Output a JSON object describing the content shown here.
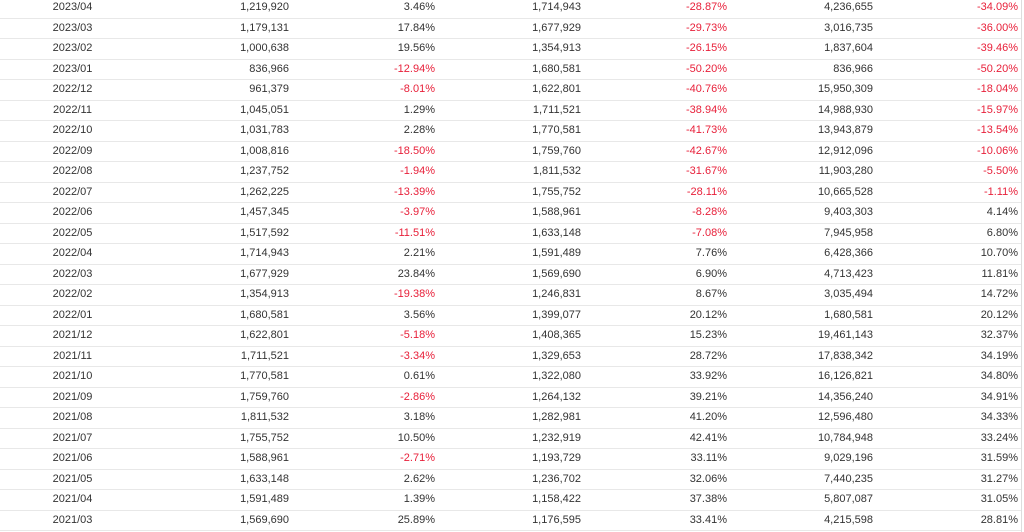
{
  "colors": {
    "negative": "#e8203a",
    "text": "#333333",
    "row_border": "#e8e8e8"
  },
  "rows": [
    [
      "2023/04",
      "1,219,920",
      "3.46%",
      "1,714,943",
      "-28.87%",
      "4,236,655",
      "-34.09%"
    ],
    [
      "2023/03",
      "1,179,131",
      "17.84%",
      "1,677,929",
      "-29.73%",
      "3,016,735",
      "-36.00%"
    ],
    [
      "2023/02",
      "1,000,638",
      "19.56%",
      "1,354,913",
      "-26.15%",
      "1,837,604",
      "-39.46%"
    ],
    [
      "2023/01",
      "836,966",
      "-12.94%",
      "1,680,581",
      "-50.20%",
      "836,966",
      "-50.20%"
    ],
    [
      "2022/12",
      "961,379",
      "-8.01%",
      "1,622,801",
      "-40.76%",
      "15,950,309",
      "-18.04%"
    ],
    [
      "2022/11",
      "1,045,051",
      "1.29%",
      "1,711,521",
      "-38.94%",
      "14,988,930",
      "-15.97%"
    ],
    [
      "2022/10",
      "1,031,783",
      "2.28%",
      "1,770,581",
      "-41.73%",
      "13,943,879",
      "-13.54%"
    ],
    [
      "2022/09",
      "1,008,816",
      "-18.50%",
      "1,759,760",
      "-42.67%",
      "12,912,096",
      "-10.06%"
    ],
    [
      "2022/08",
      "1,237,752",
      "-1.94%",
      "1,811,532",
      "-31.67%",
      "11,903,280",
      "-5.50%"
    ],
    [
      "2022/07",
      "1,262,225",
      "-13.39%",
      "1,755,752",
      "-28.11%",
      "10,665,528",
      "-1.11%"
    ],
    [
      "2022/06",
      "1,457,345",
      "-3.97%",
      "1,588,961",
      "-8.28%",
      "9,403,303",
      "4.14%"
    ],
    [
      "2022/05",
      "1,517,592",
      "-11.51%",
      "1,633,148",
      "-7.08%",
      "7,945,958",
      "6.80%"
    ],
    [
      "2022/04",
      "1,714,943",
      "2.21%",
      "1,591,489",
      "7.76%",
      "6,428,366",
      "10.70%"
    ],
    [
      "2022/03",
      "1,677,929",
      "23.84%",
      "1,569,690",
      "6.90%",
      "4,713,423",
      "11.81%"
    ],
    [
      "2022/02",
      "1,354,913",
      "-19.38%",
      "1,246,831",
      "8.67%",
      "3,035,494",
      "14.72%"
    ],
    [
      "2022/01",
      "1,680,581",
      "3.56%",
      "1,399,077",
      "20.12%",
      "1,680,581",
      "20.12%"
    ],
    [
      "2021/12",
      "1,622,801",
      "-5.18%",
      "1,408,365",
      "15.23%",
      "19,461,143",
      "32.37%"
    ],
    [
      "2021/11",
      "1,711,521",
      "-3.34%",
      "1,329,653",
      "28.72%",
      "17,838,342",
      "34.19%"
    ],
    [
      "2021/10",
      "1,770,581",
      "0.61%",
      "1,322,080",
      "33.92%",
      "16,126,821",
      "34.80%"
    ],
    [
      "2021/09",
      "1,759,760",
      "-2.86%",
      "1,264,132",
      "39.21%",
      "14,356,240",
      "34.91%"
    ],
    [
      "2021/08",
      "1,811,532",
      "3.18%",
      "1,282,981",
      "41.20%",
      "12,596,480",
      "34.33%"
    ],
    [
      "2021/07",
      "1,755,752",
      "10.50%",
      "1,232,919",
      "42.41%",
      "10,784,948",
      "33.24%"
    ],
    [
      "2021/06",
      "1,588,961",
      "-2.71%",
      "1,193,729",
      "33.11%",
      "9,029,196",
      "31.59%"
    ],
    [
      "2021/05",
      "1,633,148",
      "2.62%",
      "1,236,702",
      "32.06%",
      "7,440,235",
      "31.27%"
    ],
    [
      "2021/04",
      "1,591,489",
      "1.39%",
      "1,158,422",
      "37.38%",
      "5,807,087",
      "31.05%"
    ],
    [
      "2021/03",
      "1,569,690",
      "25.89%",
      "1,176,595",
      "33.41%",
      "4,215,598",
      "28.81%"
    ]
  ]
}
